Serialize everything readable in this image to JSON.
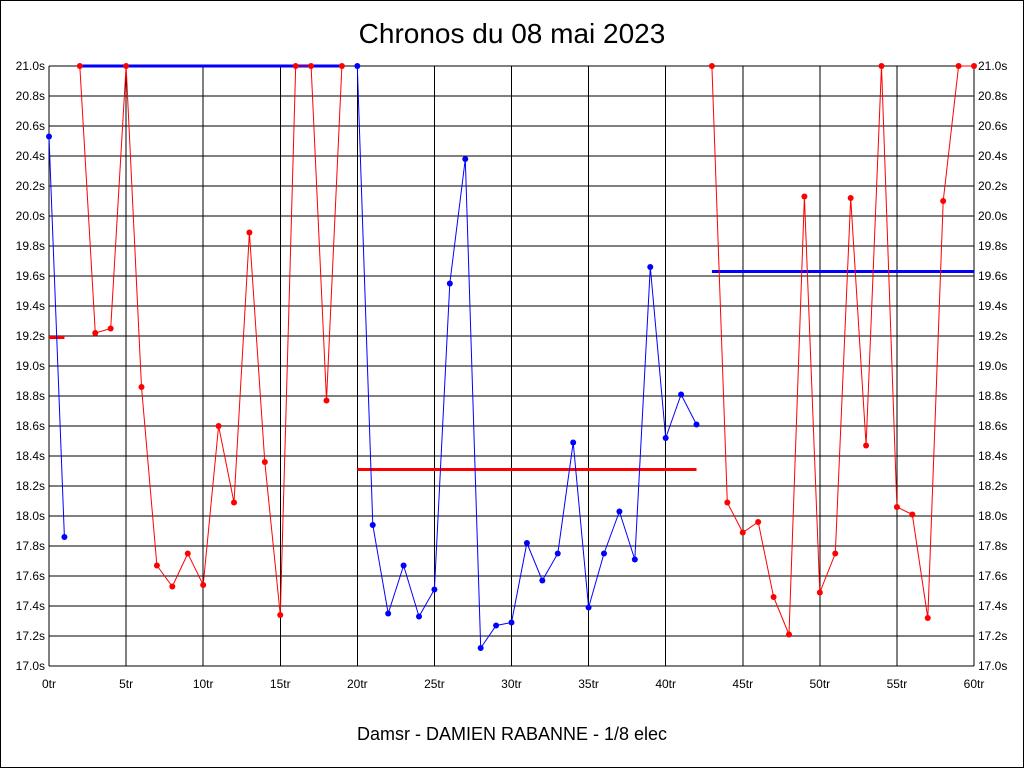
{
  "chart_data": {
    "type": "line",
    "title": "Chronos du 08 mai 2023",
    "subtitle": "Damsr - DAMIEN RABANNE - 1/8 elec",
    "xlim": [
      0,
      60
    ],
    "ylim": [
      17.0,
      21.0
    ],
    "x_ticks": [
      0,
      5,
      10,
      15,
      20,
      25,
      30,
      35,
      40,
      45,
      50,
      55,
      60
    ],
    "x_tick_labels": [
      "0tr",
      "5tr",
      "10tr",
      "15tr",
      "20tr",
      "25tr",
      "30tr",
      "35tr",
      "40tr",
      "45tr",
      "50tr",
      "55tr",
      "60tr"
    ],
    "y_ticks": [
      17.0,
      17.2,
      17.4,
      17.6,
      17.8,
      18.0,
      18.2,
      18.4,
      18.6,
      18.8,
      19.0,
      19.2,
      19.4,
      19.6,
      19.8,
      20.0,
      20.2,
      20.4,
      20.6,
      20.8,
      21.0
    ],
    "y_tick_labels": [
      "17.0s",
      "17.2s",
      "17.4s",
      "17.6s",
      "17.8s",
      "18.0s",
      "18.2s",
      "18.4s",
      "18.6s",
      "18.8s",
      "19.0s",
      "19.2s",
      "19.4s",
      "19.6s",
      "19.8s",
      "20.0s",
      "20.2s",
      "20.4s",
      "20.6s",
      "20.8s",
      "21.0s"
    ],
    "grid": true,
    "series": [
      {
        "color": "#0000ff",
        "x": [
          0,
          1
        ],
        "y": [
          20.53,
          17.86
        ]
      },
      {
        "color": "#ff0000",
        "x": [
          2,
          3,
          4,
          5,
          6,
          7,
          8,
          9,
          10,
          11,
          12,
          13,
          14,
          15,
          16,
          17,
          18,
          19
        ],
        "y": [
          21.0,
          19.22,
          19.25,
          21.0,
          18.86,
          17.67,
          17.53,
          17.75,
          17.54,
          18.6,
          18.09,
          19.89,
          18.36,
          17.34,
          21.0,
          21.0,
          18.77,
          21.0
        ]
      },
      {
        "color": "#0000ff",
        "x": [
          20,
          21,
          22,
          23,
          24,
          25,
          26,
          27,
          28,
          29,
          30,
          31,
          32,
          33,
          34,
          35,
          36,
          37,
          38,
          39,
          40,
          41,
          42
        ],
        "y": [
          21.0,
          17.94,
          17.35,
          17.67,
          17.33,
          17.51,
          19.55,
          20.38,
          17.12,
          17.27,
          17.29,
          17.82,
          17.57,
          17.75,
          18.49,
          17.39,
          17.75,
          18.03,
          17.71,
          19.66,
          18.52,
          18.81,
          18.61
        ]
      },
      {
        "color": "#ff0000",
        "x": [
          43,
          44,
          45,
          46,
          47,
          48,
          49,
          50,
          51,
          52,
          53,
          54,
          55,
          56,
          57,
          58,
          59,
          60
        ],
        "y": [
          21.0,
          18.09,
          17.89,
          17.96,
          17.46,
          17.21,
          20.13,
          17.49,
          17.75,
          20.12,
          18.47,
          21.0,
          18.06,
          18.01,
          17.32,
          20.1,
          21.0,
          21.0
        ]
      }
    ],
    "average_lines": [
      {
        "color": "#ff0000",
        "x_start": 0,
        "x_end": 1,
        "y": 19.19
      },
      {
        "color": "#0000ff",
        "x_start": 2,
        "x_end": 19,
        "y": 21.0
      },
      {
        "color": "#ff0000",
        "x_start": 20,
        "x_end": 42,
        "y": 18.31
      },
      {
        "color": "#0000ff",
        "x_start": 43,
        "x_end": 60,
        "y": 19.63
      }
    ]
  }
}
